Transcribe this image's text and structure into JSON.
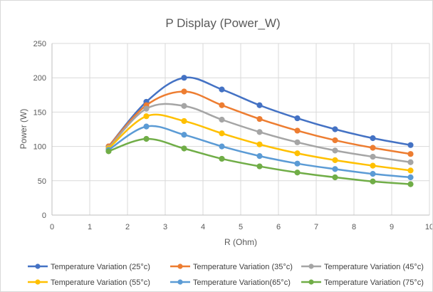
{
  "chart_data": {
    "type": "line",
    "title": "P Display (Power_W)",
    "xlabel": "R (Ohm)",
    "ylabel": "Power (W)",
    "xlim": [
      0,
      10
    ],
    "ylim": [
      0,
      250
    ],
    "xticks": [
      0,
      1,
      2,
      3,
      4,
      5,
      6,
      7,
      8,
      9,
      10
    ],
    "yticks": [
      0,
      50,
      100,
      150,
      200,
      250
    ],
    "grid": true,
    "smooth": true,
    "legend_position": "bottom",
    "x": [
      1.5,
      2.5,
      3.5,
      4.5,
      5.5,
      6.5,
      7.5,
      8.5,
      9.5
    ],
    "series": [
      {
        "name": "Temperature Variation (25°c)",
        "color": "#4472c4",
        "values": [
          100,
          165,
          200,
          183,
          160,
          141,
          125,
          112,
          102
        ]
      },
      {
        "name": "Temperature Variation (35°c)",
        "color": "#ed7d31",
        "values": [
          100,
          160,
          180,
          160,
          140,
          123,
          109,
          98,
          89
        ]
      },
      {
        "name": "Temperature Variation (45°c)",
        "color": "#a5a5a5",
        "values": [
          98,
          155,
          159,
          139,
          121,
          106,
          94,
          85,
          77
        ]
      },
      {
        "name": "Temperature Variation (55°c)",
        "color": "#ffc000",
        "values": [
          97,
          144,
          137,
          119,
          103,
          90,
          80,
          72,
          65
        ]
      },
      {
        "name": "Temperature Variation(65°c)",
        "color": "#5b9bd5",
        "values": [
          95,
          129,
          117,
          100,
          86,
          75,
          67,
          60,
          55
        ]
      },
      {
        "name": "Temperature Variation (75°c)",
        "color": "#70ad47",
        "values": [
          93,
          111,
          97,
          82,
          71,
          62,
          55,
          49,
          45
        ]
      }
    ]
  }
}
